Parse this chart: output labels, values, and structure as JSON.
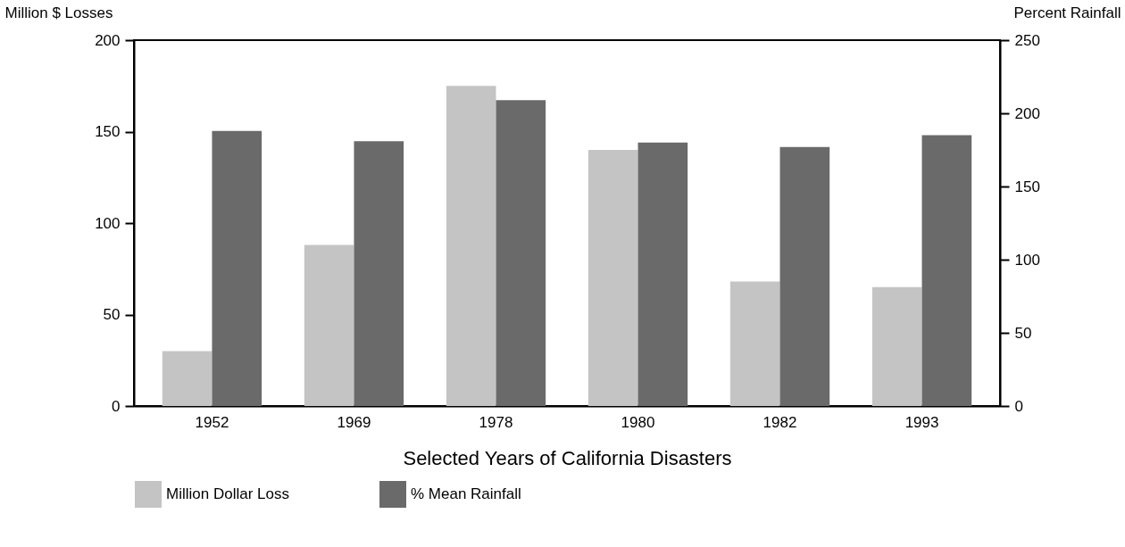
{
  "chart_data": {
    "type": "bar",
    "xlabel": "Selected Years of California Disasters",
    "ylabel": "Million $ Losses",
    "y2label": "Percent Rainfall",
    "categories": [
      "1952",
      "1969",
      "1978",
      "1980",
      "1982",
      "1993"
    ],
    "series": [
      {
        "name": "Million Dollar Loss",
        "color": "#c4c4c4",
        "values": [
          30,
          88,
          175,
          140,
          68,
          65
        ]
      },
      {
        "name": "% Mean Rainfall",
        "color": "#6a6a6a",
        "axis": "y2",
        "values": [
          188,
          181,
          209,
          180,
          177,
          185
        ]
      }
    ],
    "ylim": [
      0,
      200
    ],
    "yticks": [
      0,
      50,
      100,
      150,
      200
    ],
    "y2lim": [
      0,
      250
    ],
    "y2ticks": [
      0,
      50,
      100,
      150,
      200,
      250
    ],
    "legend": "bottom"
  }
}
